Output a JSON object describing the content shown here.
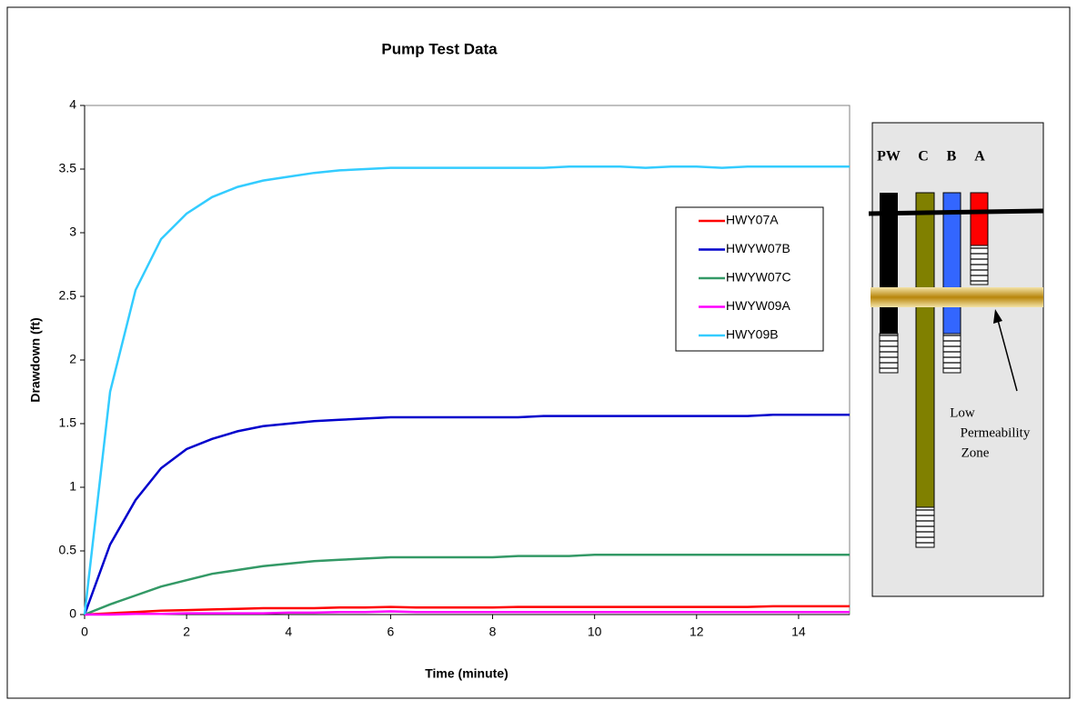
{
  "chart_data": {
    "type": "line",
    "title": "Pump Test Data",
    "x_label": "Time (minute)",
    "y_label": "Drawdown (ft)",
    "x": [
      0,
      0.5,
      1,
      1.5,
      2,
      2.5,
      3,
      3.5,
      4,
      4.5,
      5,
      5.5,
      6,
      6.5,
      7,
      7.5,
      8,
      8.5,
      9,
      9.5,
      10,
      10.5,
      11,
      11.5,
      12,
      12.5,
      13,
      13.5,
      14,
      14.5,
      15
    ],
    "series": [
      {
        "name": "HWY07A",
        "color": "#ff0000",
        "values": [
          0,
          0.01,
          0.02,
          0.03,
          0.035,
          0.04,
          0.045,
          0.05,
          0.05,
          0.05,
          0.055,
          0.055,
          0.06,
          0.055,
          0.055,
          0.055,
          0.055,
          0.06,
          0.06,
          0.06,
          0.06,
          0.06,
          0.06,
          0.06,
          0.06,
          0.06,
          0.06,
          0.065,
          0.065,
          0.065,
          0.065
        ]
      },
      {
        "name": "HWYW07B",
        "color": "#0000cc",
        "values": [
          0,
          0.55,
          0.9,
          1.15,
          1.3,
          1.38,
          1.44,
          1.48,
          1.5,
          1.52,
          1.53,
          1.54,
          1.55,
          1.55,
          1.55,
          1.55,
          1.55,
          1.55,
          1.56,
          1.56,
          1.56,
          1.56,
          1.56,
          1.56,
          1.56,
          1.56,
          1.56,
          1.57,
          1.57,
          1.57,
          1.57
        ]
      },
      {
        "name": "HWYW07C",
        "color": "#339966",
        "values": [
          0,
          0.08,
          0.15,
          0.22,
          0.27,
          0.32,
          0.35,
          0.38,
          0.4,
          0.42,
          0.43,
          0.44,
          0.45,
          0.45,
          0.45,
          0.45,
          0.45,
          0.46,
          0.46,
          0.46,
          0.47,
          0.47,
          0.47,
          0.47,
          0.47,
          0.47,
          0.47,
          0.47,
          0.47,
          0.47,
          0.47
        ]
      },
      {
        "name": "HWYW09A",
        "color": "#ff00ff",
        "values": [
          0,
          0,
          0.005,
          0.005,
          0.01,
          0.01,
          0.01,
          0.01,
          0.015,
          0.015,
          0.02,
          0.02,
          0.025,
          0.02,
          0.02,
          0.02,
          0.02,
          0.02,
          0.02,
          0.02,
          0.02,
          0.02,
          0.02,
          0.02,
          0.02,
          0.02,
          0.02,
          0.02,
          0.02,
          0.02,
          0.02
        ]
      },
      {
        "name": "HWY09B",
        "color": "#33ccff",
        "values": [
          0,
          1.75,
          2.55,
          2.95,
          3.15,
          3.28,
          3.36,
          3.41,
          3.44,
          3.47,
          3.49,
          3.5,
          3.51,
          3.51,
          3.51,
          3.51,
          3.51,
          3.51,
          3.51,
          3.52,
          3.52,
          3.52,
          3.51,
          3.52,
          3.52,
          3.51,
          3.52,
          3.52,
          3.52,
          3.52,
          3.52
        ]
      }
    ],
    "xlim": [
      0,
      15
    ],
    "xticks": [
      0,
      2,
      4,
      6,
      8,
      10,
      12,
      14
    ],
    "ylim": [
      0,
      4
    ],
    "yticks": [
      0,
      0.5,
      1,
      1.5,
      2,
      2.5,
      3,
      3.5,
      4
    ],
    "grid": false,
    "annotations": {
      "well_labels": [
        "PW",
        "C",
        "B",
        "A"
      ],
      "zone_label": [
        "Low",
        "Permeability",
        "Zone"
      ]
    }
  }
}
